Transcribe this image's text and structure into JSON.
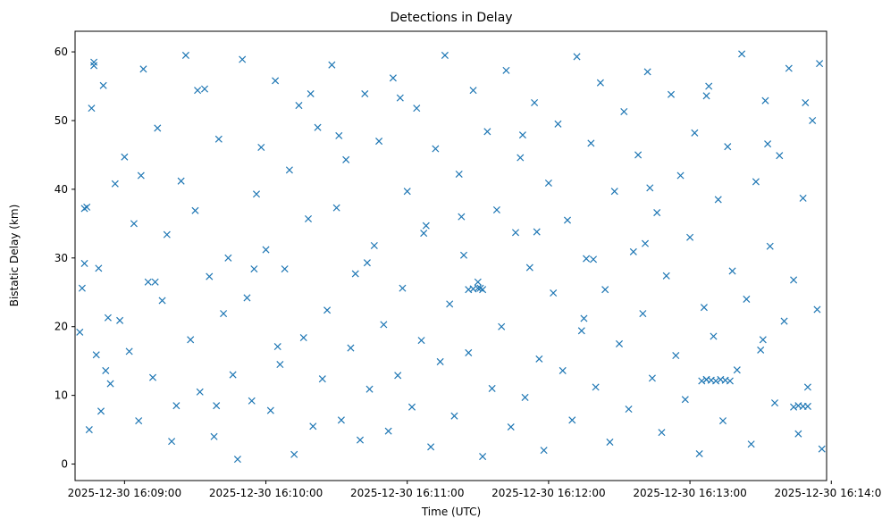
{
  "chart_data": {
    "type": "scatter",
    "title": "Detections in Delay",
    "xlabel": "Time (UTC)",
    "ylabel": "Bistatic Delay (km)",
    "marker": "x",
    "color": "#1f77b4",
    "grid": false,
    "legend": "none",
    "xlim": [
      "2025-12-30 16:08:39",
      "2025-12-30 16:13:58"
    ],
    "ylim": [
      -2.4,
      63.0
    ],
    "x_ticks": [
      {
        "value": "2025-12-30 16:09:00",
        "label": "2025-12-30 16:09:00"
      },
      {
        "value": "2025-12-30 16:10:00",
        "label": "2025-12-30 16:10:00"
      },
      {
        "value": "2025-12-30 16:11:00",
        "label": "2025-12-30 16:11:00"
      },
      {
        "value": "2025-12-30 16:12:00",
        "label": "2025-12-30 16:12:00"
      },
      {
        "value": "2025-12-30 16:13:00",
        "label": "2025-12-30 16:13:00"
      },
      {
        "value": "2025-12-30 16:14:00",
        "label": "2025-12-30 16:14:00"
      }
    ],
    "y_ticks": [
      0,
      10,
      20,
      30,
      40,
      50,
      60
    ],
    "points": {
      "x": [
        "2025-12-30 16:08:41",
        "2025-12-30 16:08:42",
        "2025-12-30 16:08:43",
        "2025-12-30 16:08:44",
        "2025-12-30 16:08:45",
        "2025-12-30 16:08:46",
        "2025-12-30 16:08:47",
        "2025-12-30 16:08:48",
        "2025-12-30 16:08:49",
        "2025-12-30 16:08:50",
        "2025-12-30 16:08:51",
        "2025-12-30 16:08:52",
        "2025-12-30 16:08:53",
        "2025-12-30 16:08:54",
        "2025-12-30 16:08:56",
        "2025-12-30 16:08:58",
        "2025-12-30 16:09:00",
        "2025-12-30 16:09:02",
        "2025-12-30 16:09:04",
        "2025-12-30 16:09:06",
        "2025-12-30 16:09:08",
        "2025-12-30 16:09:10",
        "2025-12-30 16:09:12",
        "2025-12-30 16:09:14",
        "2025-12-30 16:09:16",
        "2025-12-30 16:09:18",
        "2025-12-30 16:09:20",
        "2025-12-30 16:09:22",
        "2025-12-30 16:09:24",
        "2025-12-30 16:09:26",
        "2025-12-30 16:09:28",
        "2025-12-30 16:09:30",
        "2025-12-30 16:09:32",
        "2025-12-30 16:09:34",
        "2025-12-30 16:09:36",
        "2025-12-30 16:09:38",
        "2025-12-30 16:09:40",
        "2025-12-30 16:09:42",
        "2025-12-30 16:09:44",
        "2025-12-30 16:09:46",
        "2025-12-30 16:09:48",
        "2025-12-30 16:09:50",
        "2025-12-30 16:09:52",
        "2025-12-30 16:09:54",
        "2025-12-30 16:09:56",
        "2025-12-30 16:09:58",
        "2025-12-30 16:10:00",
        "2025-12-30 16:10:02",
        "2025-12-30 16:10:04",
        "2025-12-30 16:10:06",
        "2025-12-30 16:10:08",
        "2025-12-30 16:10:10",
        "2025-12-30 16:10:12",
        "2025-12-30 16:10:14",
        "2025-12-30 16:10:16",
        "2025-12-30 16:10:18",
        "2025-12-30 16:10:20",
        "2025-12-30 16:10:22",
        "2025-12-30 16:10:24",
        "2025-12-30 16:10:26",
        "2025-12-30 16:10:28",
        "2025-12-30 16:10:30",
        "2025-12-30 16:10:32",
        "2025-12-30 16:10:34",
        "2025-12-30 16:10:36",
        "2025-12-30 16:10:38",
        "2025-12-30 16:10:40",
        "2025-12-30 16:10:42",
        "2025-12-30 16:10:44",
        "2025-12-30 16:10:46",
        "2025-12-30 16:10:48",
        "2025-12-30 16:10:50",
        "2025-12-30 16:10:52",
        "2025-12-30 16:10:54",
        "2025-12-30 16:10:56",
        "2025-12-30 16:10:58",
        "2025-12-30 16:11:00",
        "2025-12-30 16:11:02",
        "2025-12-30 16:11:04",
        "2025-12-30 16:11:06",
        "2025-12-30 16:11:08",
        "2025-12-30 16:11:10",
        "2025-12-30 16:11:12",
        "2025-12-30 16:11:14",
        "2025-12-30 16:11:16",
        "2025-12-30 16:11:18",
        "2025-12-30 16:11:20",
        "2025-12-30 16:11:22",
        "2025-12-30 16:11:24",
        "2025-12-30 16:11:26",
        "2025-12-30 16:11:28",
        "2025-12-30 16:11:30",
        "2025-12-30 16:11:32",
        "2025-12-30 16:11:34",
        "2025-12-30 16:11:36",
        "2025-12-30 16:11:38",
        "2025-12-30 16:11:40",
        "2025-12-30 16:11:42",
        "2025-12-30 16:11:44",
        "2025-12-30 16:11:46",
        "2025-12-30 16:11:48",
        "2025-12-30 16:11:50",
        "2025-12-30 16:11:52",
        "2025-12-30 16:11:54",
        "2025-12-30 16:11:56",
        "2025-12-30 16:11:58",
        "2025-12-30 16:12:00",
        "2025-12-30 16:12:02",
        "2025-12-30 16:12:04",
        "2025-12-30 16:12:06",
        "2025-12-30 16:12:08",
        "2025-12-30 16:12:10",
        "2025-12-30 16:12:12",
        "2025-12-30 16:12:14",
        "2025-12-30 16:12:16",
        "2025-12-30 16:12:18",
        "2025-12-30 16:12:20",
        "2025-12-30 16:12:22",
        "2025-12-30 16:12:24",
        "2025-12-30 16:12:26",
        "2025-12-30 16:12:28",
        "2025-12-30 16:12:30",
        "2025-12-30 16:12:32",
        "2025-12-30 16:12:34",
        "2025-12-30 16:12:36",
        "2025-12-30 16:12:38",
        "2025-12-30 16:12:40",
        "2025-12-30 16:12:42",
        "2025-12-30 16:12:44",
        "2025-12-30 16:12:46",
        "2025-12-30 16:12:48",
        "2025-12-30 16:12:50",
        "2025-12-30 16:12:52",
        "2025-12-30 16:12:54",
        "2025-12-30 16:12:56",
        "2025-12-30 16:12:58",
        "2025-12-30 16:13:00",
        "2025-12-30 16:13:02",
        "2025-12-30 16:13:04",
        "2025-12-30 16:13:06",
        "2025-12-30 16:13:08",
        "2025-12-30 16:13:10",
        "2025-12-30 16:13:12",
        "2025-12-30 16:13:14",
        "2025-12-30 16:13:16",
        "2025-12-30 16:13:18",
        "2025-12-30 16:13:20",
        "2025-12-30 16:13:22",
        "2025-12-30 16:13:24",
        "2025-12-30 16:13:26",
        "2025-12-30 16:13:28",
        "2025-12-30 16:13:30",
        "2025-12-30 16:13:32",
        "2025-12-30 16:13:34",
        "2025-12-30 16:13:36",
        "2025-12-30 16:13:38",
        "2025-12-30 16:13:40",
        "2025-12-30 16:13:42",
        "2025-12-30 16:13:44",
        "2025-12-30 16:13:46",
        "2025-12-30 16:13:48",
        "2025-12-30 16:13:50",
        "2025-12-30 16:13:52",
        "2025-12-30 16:13:54",
        "2025-12-30 16:13:55",
        "2025-12-30 16:13:56",
        "2025-12-30 16:08:43",
        "2025-12-30 16:09:07",
        "2025-12-30 16:09:31",
        "2025-12-30 16:09:55",
        "2025-12-30 16:10:19",
        "2025-12-30 16:10:43",
        "2025-12-30 16:11:07",
        "2025-12-30 16:11:31",
        "2025-12-30 16:11:55",
        "2025-12-30 16:12:19",
        "2025-12-30 16:12:43",
        "2025-12-30 16:13:07",
        "2025-12-30 16:13:31",
        "2025-12-30 16:13:49",
        "2025-12-30 16:08:47",
        "2025-12-30 16:09:13",
        "2025-12-30 16:09:39",
        "2025-12-30 16:10:05",
        "2025-12-30 16:10:31",
        "2025-12-30 16:10:57",
        "2025-12-30 16:11:23",
        "2025-12-30 16:11:49",
        "2025-12-30 16:12:15",
        "2025-12-30 16:12:41",
        "2025-12-30 16:13:07",
        "2025-12-30 16:13:33",
        "2025-12-30 16:13:05",
        "2025-12-30 16:13:07",
        "2025-12-30 16:13:09",
        "2025-12-30 16:13:11",
        "2025-12-30 16:13:13",
        "2025-12-30 16:13:15",
        "2025-12-30 16:13:17",
        "2025-12-30 16:11:26",
        "2025-12-30 16:11:28",
        "2025-12-30 16:11:30",
        "2025-12-30 16:11:32",
        "2025-12-30 16:13:44",
        "2025-12-30 16:13:46",
        "2025-12-30 16:13:48",
        "2025-12-30 16:13:50"
      ],
      "y": [
        19.2,
        25.6,
        29.2,
        37.4,
        5.0,
        51.8,
        58.5,
        15.9,
        28.5,
        7.7,
        55.1,
        13.6,
        21.3,
        11.7,
        40.8,
        20.9,
        44.7,
        16.4,
        35.0,
        6.3,
        57.5,
        26.5,
        12.6,
        48.9,
        23.8,
        33.4,
        3.3,
        8.5,
        41.2,
        59.5,
        18.1,
        36.9,
        10.5,
        54.6,
        27.3,
        4.0,
        47.3,
        21.9,
        30.0,
        13.0,
        0.7,
        58.9,
        24.2,
        9.2,
        39.3,
        46.1,
        31.2,
        7.8,
        55.8,
        14.5,
        28.4,
        42.8,
        1.4,
        52.2,
        18.4,
        35.7,
        5.5,
        49.0,
        12.4,
        22.4,
        58.1,
        37.3,
        6.4,
        44.3,
        16.9,
        27.7,
        3.5,
        53.9,
        10.9,
        31.8,
        47.0,
        20.3,
        4.8,
        56.2,
        12.9,
        25.6,
        39.7,
        8.3,
        51.8,
        18.0,
        34.7,
        2.5,
        45.9,
        14.9,
        59.5,
        23.3,
        7.0,
        42.2,
        30.4,
        16.2,
        54.4,
        26.5,
        1.1,
        48.4,
        11.0,
        37.0,
        20.0,
        57.3,
        5.4,
        33.7,
        44.6,
        9.7,
        28.6,
        52.6,
        15.3,
        2.0,
        40.9,
        24.9,
        49.5,
        13.6,
        35.5,
        6.4,
        59.3,
        19.4,
        29.9,
        46.7,
        11.2,
        55.5,
        25.4,
        3.2,
        39.7,
        17.5,
        51.3,
        8.0,
        30.9,
        45.0,
        21.9,
        57.1,
        12.5,
        36.6,
        4.6,
        27.4,
        53.8,
        15.8,
        42.0,
        9.4,
        33.0,
        48.2,
        1.5,
        22.8,
        55.0,
        18.6,
        38.5,
        6.3,
        46.2,
        28.1,
        13.7,
        59.7,
        24.0,
        2.9,
        41.1,
        16.6,
        52.9,
        31.7,
        8.9,
        44.9,
        20.8,
        57.6,
        26.8,
        4.4,
        38.7,
        11.2,
        50.0,
        22.5,
        58.3,
        2.2,
        37.2,
        42.0,
        54.4,
        28.4,
        53.9,
        29.3,
        33.6,
        25.6,
        33.8,
        29.8,
        40.2,
        53.6,
        18.1,
        52.6,
        58.0,
        26.5,
        8.5,
        17.1,
        47.8,
        53.3,
        36.0,
        47.9,
        21.2,
        32.1,
        12.3,
        46.6,
        12.1,
        12.3,
        12.2,
        12.1,
        12.3,
        12.2,
        12.1,
        25.4,
        25.5,
        25.6,
        25.4,
        8.3,
        8.5,
        8.4,
        8.4
      ]
    }
  }
}
